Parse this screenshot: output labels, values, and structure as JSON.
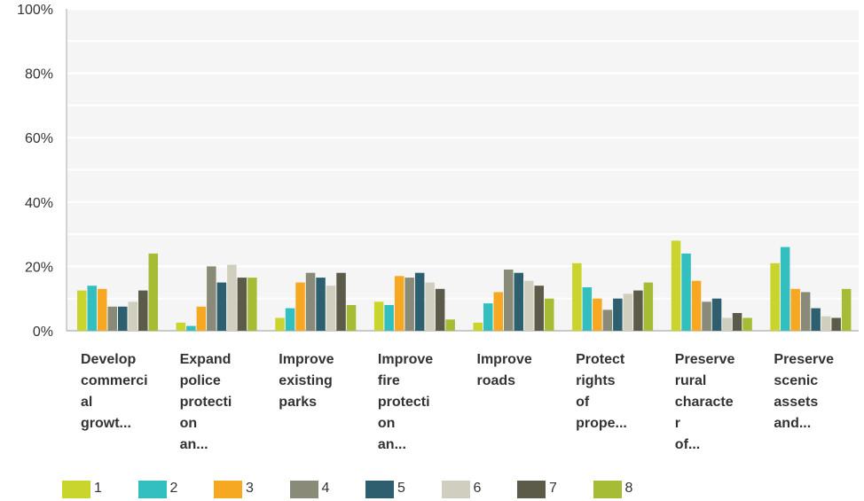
{
  "chart_data": {
    "type": "bar",
    "categories": [
      "Develop commercial growt...",
      "Expand police protection an...",
      "Improve existing parks",
      "Improve fire protection an...",
      "Improve roads",
      "Protect rights of prope...",
      "Preserve rural character of...",
      "Preserve scenic assets and..."
    ],
    "category_labels": [
      "Develop commerci al growt...",
      "Expand police protecti on an...",
      "Improve existing parks",
      "Improve fire protecti on an...",
      "Improve roads",
      "Protect rights of prope...",
      "Preserve rural characte r of...",
      "Preserve scenic assets and..."
    ],
    "series": [
      {
        "name": "1",
        "color": "#c9d42c",
        "values": [
          12.5,
          2.5,
          4,
          9,
          2.5,
          21,
          28,
          21
        ]
      },
      {
        "name": "2",
        "color": "#33bfbf",
        "values": [
          14,
          1.5,
          7,
          8,
          8.5,
          13.5,
          24,
          26
        ]
      },
      {
        "name": "3",
        "color": "#f7a823",
        "values": [
          13,
          7.5,
          15,
          17,
          12,
          10,
          15.5,
          13
        ]
      },
      {
        "name": "4",
        "color": "#8a8a78",
        "values": [
          7.5,
          20,
          18,
          16.5,
          19,
          6.5,
          9,
          12
        ]
      },
      {
        "name": "5",
        "color": "#2d5f6e",
        "values": [
          7.5,
          15,
          16.5,
          18,
          18,
          10,
          10,
          7
        ]
      },
      {
        "name": "6",
        "color": "#d0cfbf",
        "values": [
          9,
          20.5,
          14,
          15,
          15.5,
          11.5,
          4,
          4.5
        ]
      },
      {
        "name": "7",
        "color": "#5c5a48",
        "values": [
          12.5,
          16.5,
          18,
          13,
          14,
          12.5,
          5.5,
          4
        ]
      },
      {
        "name": "8",
        "color": "#a7bc35",
        "values": [
          24,
          16.5,
          8,
          3.5,
          10,
          15,
          4,
          13
        ]
      }
    ],
    "yticks": [
      "0%",
      "20%",
      "40%",
      "60%",
      "80%",
      "100%"
    ],
    "ylim": [
      0,
      100
    ],
    "grid": true,
    "legend_position": "bottom"
  }
}
